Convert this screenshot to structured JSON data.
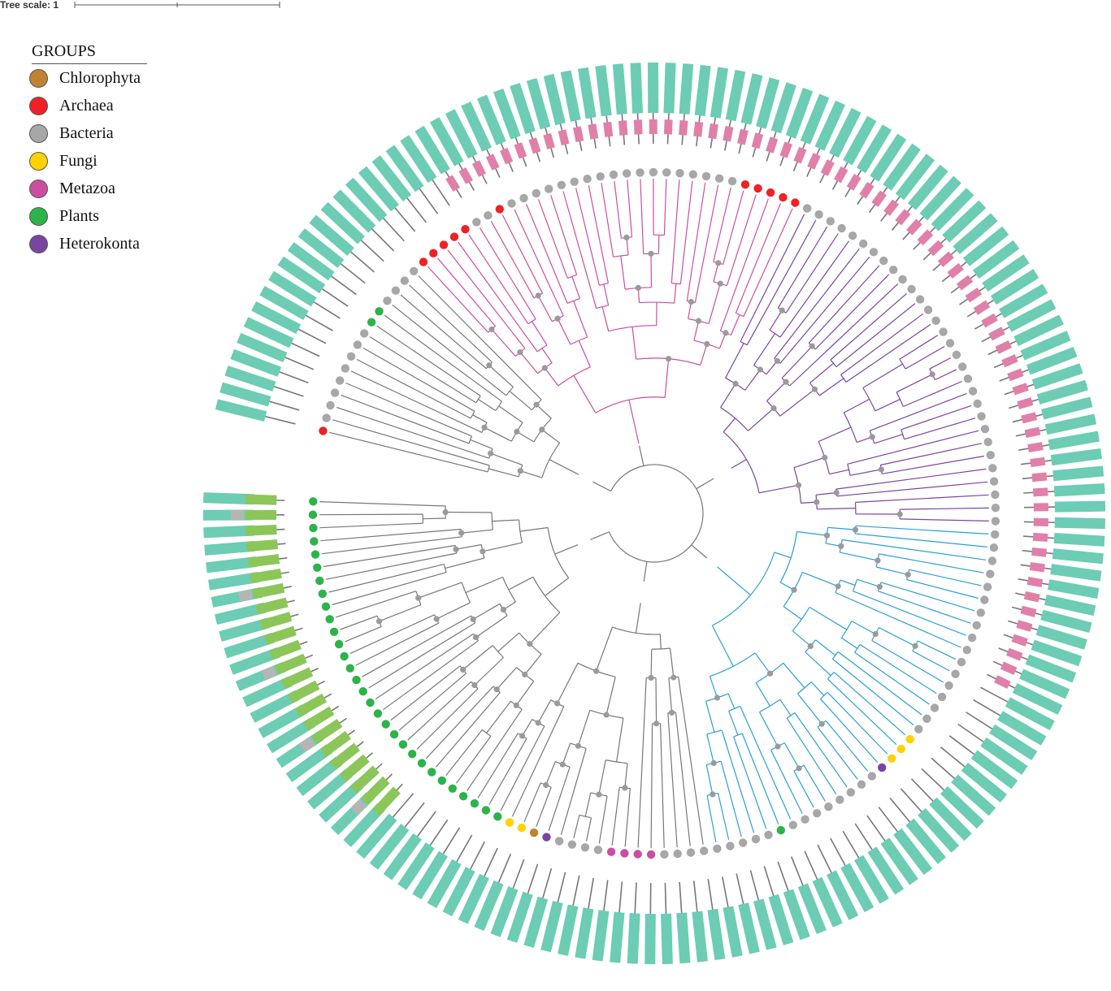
{
  "scale": {
    "label": "Tree scale: 1"
  },
  "legend": {
    "title": "GROUPS",
    "items": [
      {
        "label": "Chlorophyta",
        "color": "#c0842e",
        "icon": "circle"
      },
      {
        "label": "Archaea",
        "color": "#ee2224",
        "icon": "circle"
      },
      {
        "label": "Bacteria",
        "color": "#a7a7a7",
        "icon": "circle"
      },
      {
        "label": "Fungi",
        "color": "#ffd200",
        "icon": "circle"
      },
      {
        "label": "Metazoa",
        "color": "#cc4da2",
        "icon": "circle"
      },
      {
        "label": "Plants",
        "color": "#2cb34a",
        "icon": "circle"
      },
      {
        "label": "Heterokonta",
        "color": "#7a45a0",
        "icon": "circle"
      }
    ]
  },
  "tree": {
    "layout": "circular",
    "leaf_groups": [
      "Archaea",
      "Bacteria",
      "Bacteria",
      "Bacteria",
      "Bacteria",
      "Bacteria",
      "Bacteria",
      "Bacteria",
      "Bacteria",
      "Plants",
      "Plants",
      "Bacteria",
      "Bacteria",
      "Bacteria",
      "Bacteria",
      "Archaea",
      "Archaea",
      "Archaea",
      "Archaea",
      "Archaea",
      "Bacteria",
      "Bacteria",
      "Archaea",
      "Bacteria",
      "Bacteria",
      "Bacteria",
      "Bacteria",
      "Bacteria",
      "Bacteria",
      "Bacteria",
      "Bacteria",
      "Bacteria",
      "Bacteria",
      "Bacteria",
      "Bacteria",
      "Bacteria",
      "Bacteria",
      "Bacteria",
      "Bacteria",
      "Bacteria",
      "Bacteria",
      "Archaea",
      "Archaea",
      "Archaea",
      "Archaea",
      "Archaea",
      "Bacteria",
      "Bacteria",
      "Bacteria",
      "Bacteria",
      "Bacteria",
      "Bacteria",
      "Bacteria",
      "Bacteria",
      "Bacteria",
      "Bacteria",
      "Bacteria",
      "Bacteria",
      "Bacteria",
      "Bacteria",
      "Bacteria",
      "Bacteria",
      "Bacteria",
      "Bacteria",
      "Bacteria",
      "Bacteria",
      "Bacteria",
      "Bacteria",
      "Bacteria",
      "Bacteria",
      "Bacteria",
      "Bacteria",
      "Bacteria",
      "Bacteria",
      "Bacteria",
      "Bacteria",
      "Bacteria",
      "Bacteria",
      "Bacteria",
      "Bacteria",
      "Bacteria",
      "Bacteria",
      "Bacteria",
      "Bacteria",
      "Bacteria",
      "Bacteria",
      "Bacteria",
      "Bacteria",
      "Bacteria",
      "Bacteria",
      "Bacteria",
      "Bacteria",
      "Bacteria",
      "Fungi",
      "Fungi",
      "Fungi",
      "Heterokonta",
      "Bacteria",
      "Bacteria",
      "Bacteria",
      "Bacteria",
      "Bacteria",
      "Bacteria",
      "Bacteria",
      "Bacteria",
      "Plants",
      "Bacteria",
      "Bacteria",
      "Bacteria",
      "Bacteria",
      "Bacteria",
      "Bacteria",
      "Bacteria",
      "Bacteria",
      "Bacteria",
      "Metazoa",
      "Metazoa",
      "Metazoa",
      "Metazoa",
      "Bacteria",
      "Bacteria",
      "Bacteria",
      "Bacteria",
      "Heterokonta",
      "Chlorophyta",
      "Fungi",
      "Fungi",
      "Plants",
      "Plants",
      "Plants",
      "Plants",
      "Plants",
      "Plants",
      "Plants",
      "Plants",
      "Plants",
      "Plants",
      "Plants",
      "Plants",
      "Plants",
      "Plants",
      "Plants",
      "Plants",
      "Plants",
      "Plants",
      "Plants",
      "Plants",
      "Plants",
      "Plants",
      "Plants",
      "Plants",
      "Plants",
      "Plants",
      "Plants",
      "Plants",
      "Plants",
      "Plants"
    ],
    "clades": [
      {
        "color": "#cc4da2"
      },
      {
        "color": "#7a45a0"
      },
      {
        "color": "#2a9fd6"
      },
      {
        "color": "#777777"
      }
    ],
    "domain_colors": {
      "main": "#6cccb4",
      "pink": "#e080a8",
      "green": "#8cc658",
      "gray": "#b5b5b5"
    }
  }
}
